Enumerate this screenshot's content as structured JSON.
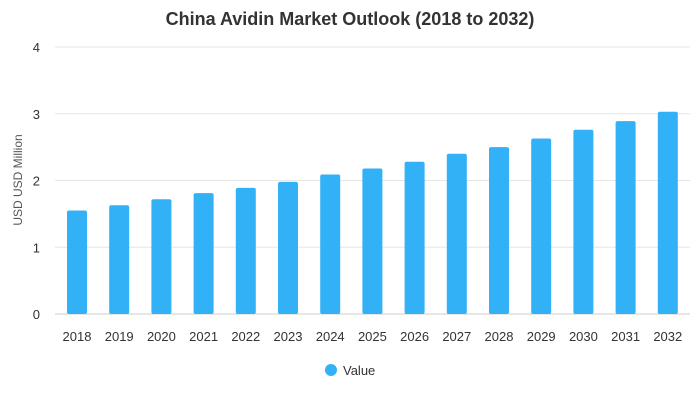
{
  "chart_data": {
    "type": "bar",
    "title": "China Avidin Market Outlook (2018 to 2032)",
    "xlabel": "",
    "ylabel": "USD USD Million",
    "categories": [
      "2018",
      "2019",
      "2020",
      "2021",
      "2022",
      "2023",
      "2024",
      "2025",
      "2026",
      "2027",
      "2028",
      "2029",
      "2030",
      "2031",
      "2032"
    ],
    "series": [
      {
        "name": "Value",
        "values": [
          1.55,
          1.63,
          1.72,
          1.81,
          1.89,
          1.98,
          2.09,
          2.18,
          2.28,
          2.4,
          2.5,
          2.63,
          2.76,
          2.89,
          3.03
        ],
        "color": "#33b1f7"
      }
    ],
    "ylim": [
      0,
      4
    ],
    "yticks": [
      "0",
      "1",
      "2",
      "3",
      "4"
    ],
    "grid": true,
    "legend": "bottom-center"
  }
}
